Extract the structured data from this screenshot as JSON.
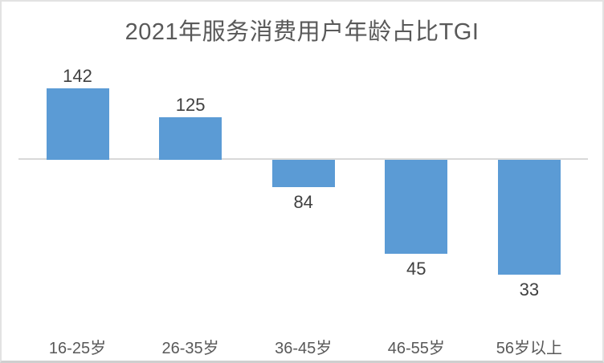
{
  "chart_data": {
    "type": "bar",
    "title": "2021年服务消费用户年龄占比TGI",
    "categories": [
      "16-25岁",
      "26-35岁",
      "36-45岁",
      "46-55岁",
      "56岁以上"
    ],
    "values": [
      142,
      125,
      84,
      45,
      33
    ],
    "series_name": "TGI",
    "baseline_value": 100,
    "data_labels_visible": true,
    "legend": "none",
    "grid": "baseline-only",
    "y_axis_visible": false,
    "colors": {
      "bar": "#5B9BD5",
      "baseline_line": "#D9D9D9",
      "title_text": "#595959",
      "value_label_text": "#404040",
      "axis_label_text": "#595959"
    }
  }
}
